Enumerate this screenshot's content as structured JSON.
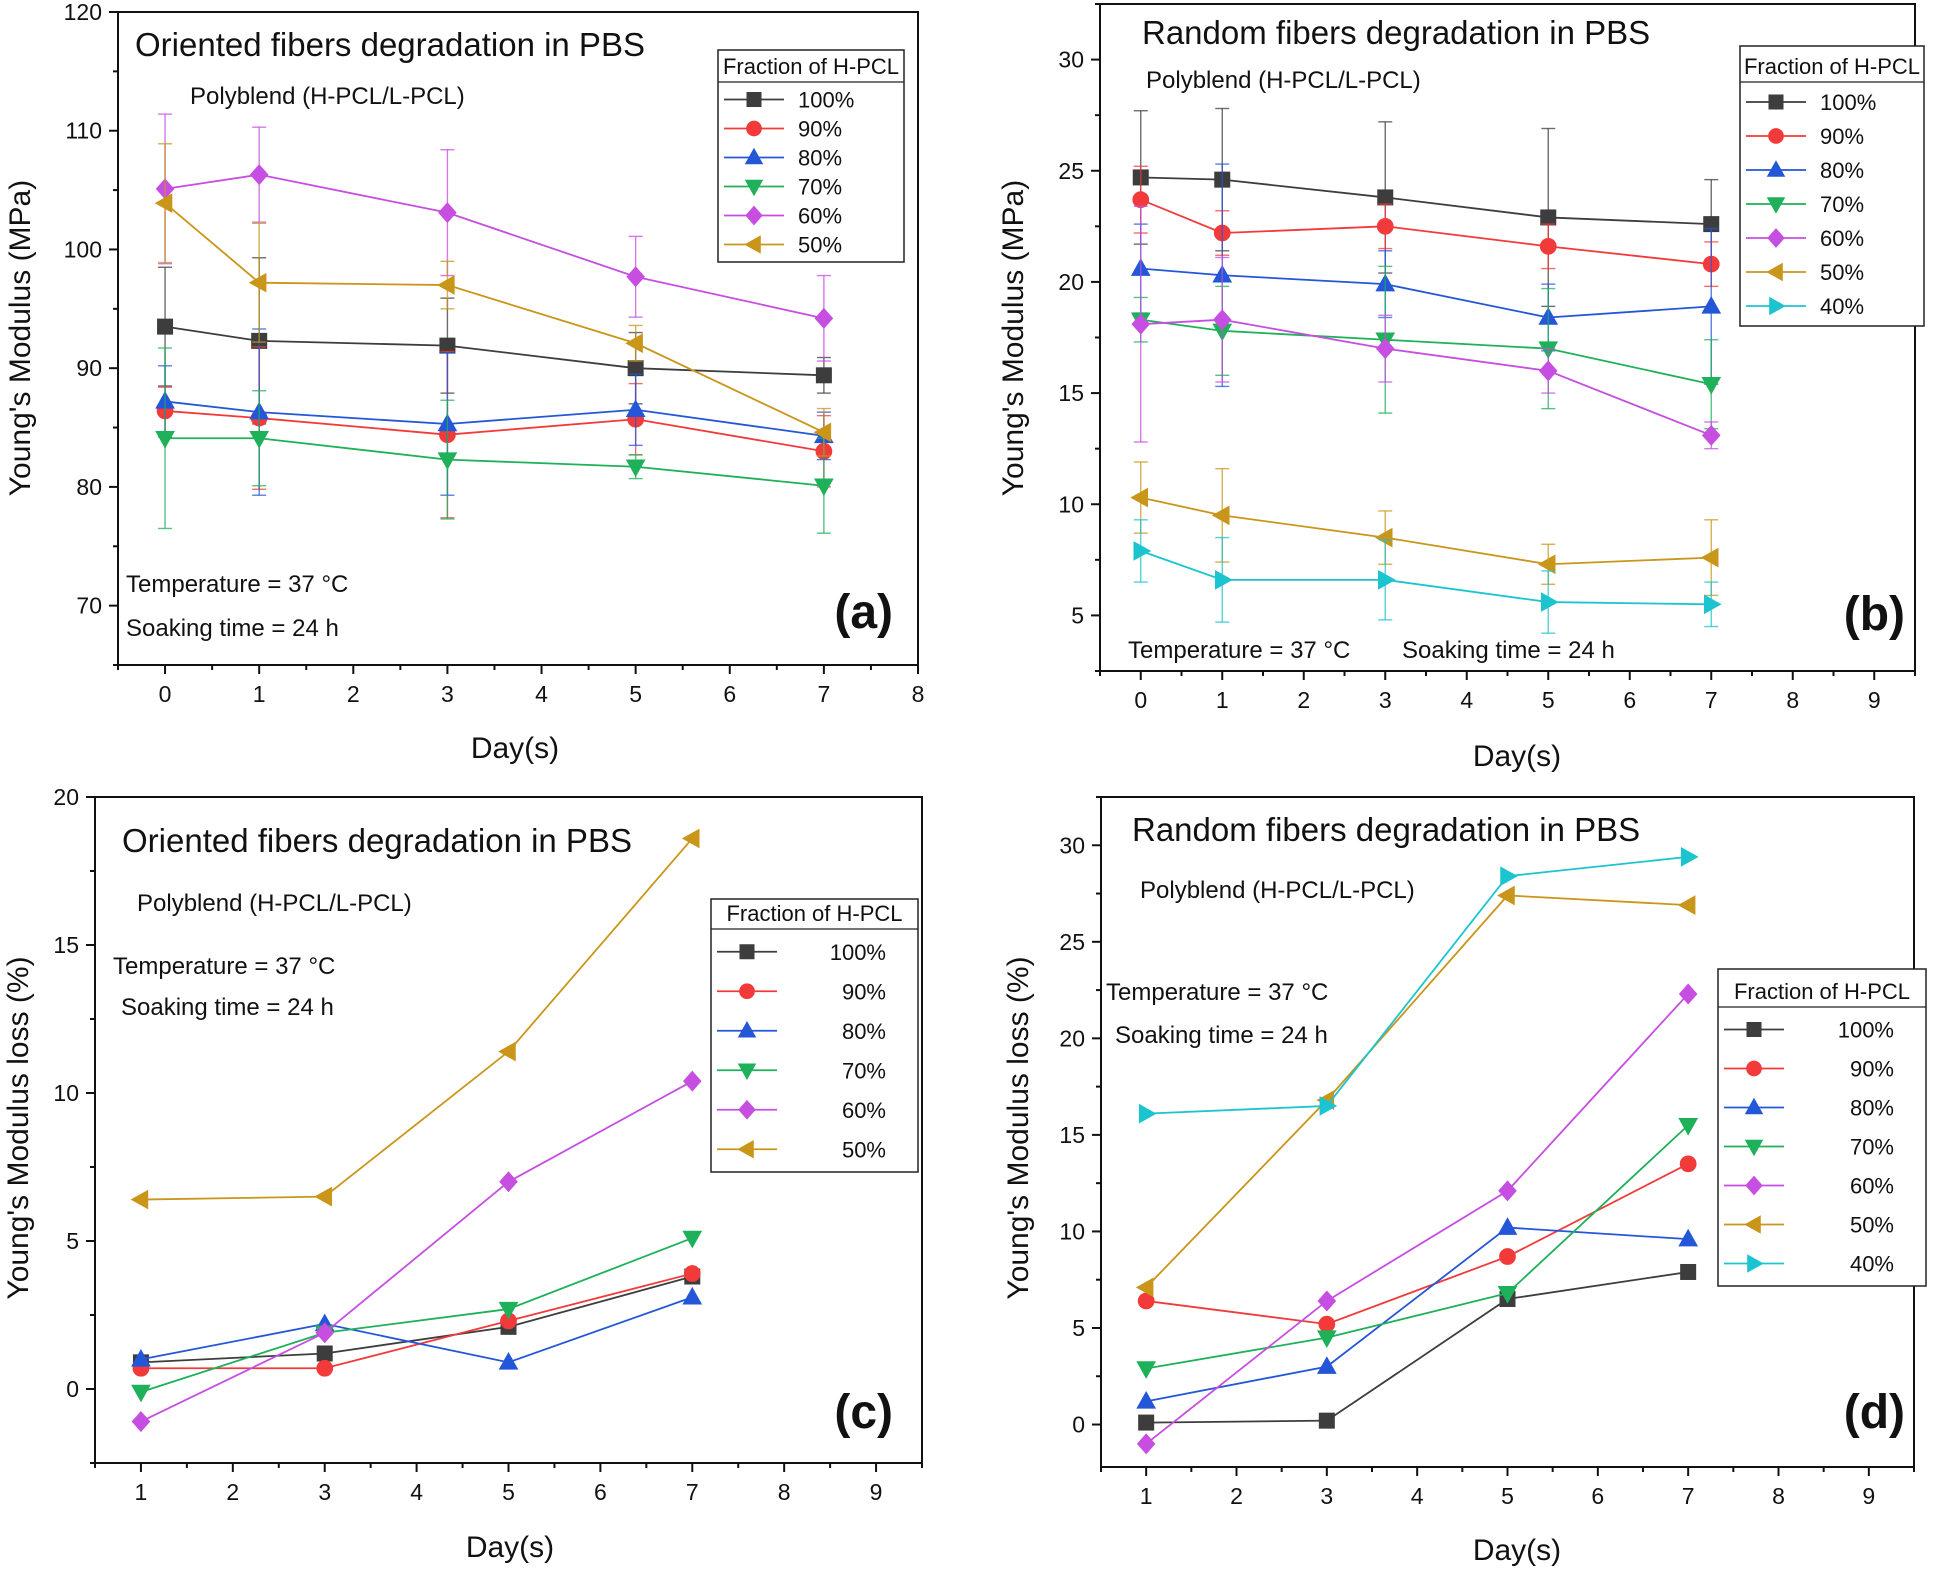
{
  "figure": {
    "type": "multi-panel line chart with error bars"
  },
  "colors": {
    "100%": "#3d3d3d",
    "90%": "#f23a3a",
    "80%": "#2456d8",
    "70%": "#1fb05a",
    "60%": "#c64ee0",
    "50%": "#c9961a",
    "40%": "#1cc4cf"
  },
  "chart_data": [
    {
      "id": "a",
      "type": "line",
      "title": "Oriented fibers degradation in PBS",
      "subtitle": "Polyblend  (H-PCL/L-PCL)",
      "conditions": [
        "Temperature  = 37 °C",
        "Soaking time  = 24 h"
      ],
      "panel_label": "(a)",
      "xlabel": "Day(s)",
      "ylabel": "Young's Modulus (MPa)",
      "xlim": [
        -0.5,
        8
      ],
      "ylim": [
        65,
        120
      ],
      "xticks": [
        0,
        1,
        2,
        3,
        4,
        5,
        6,
        7,
        8
      ],
      "yticks": [
        70,
        80,
        90,
        100,
        110,
        120
      ],
      "legend_title": "Fraction of H-PCL",
      "legend_position": "top-right",
      "x": [
        0,
        1,
        3,
        5,
        7
      ],
      "series": [
        {
          "name": "100%",
          "marker": "square",
          "values": [
            93.5,
            92.3,
            91.9,
            90.0,
            89.4
          ],
          "err": [
            5,
            7,
            4,
            3,
            1.5
          ]
        },
        {
          "name": "90%",
          "marker": "circle",
          "values": [
            86.4,
            85.8,
            84.4,
            85.7,
            83.0
          ],
          "err": [
            2,
            6,
            7,
            3,
            3
          ]
        },
        {
          "name": "80%",
          "marker": "triangle-up",
          "values": [
            87.2,
            86.3,
            85.3,
            86.5,
            84.3
          ],
          "err": [
            3,
            7,
            6,
            3,
            2
          ]
        },
        {
          "name": "70%",
          "marker": "triangle-down",
          "values": [
            84.1,
            84.1,
            82.3,
            81.7,
            80.1
          ],
          "err": [
            7.6,
            4,
            5,
            1,
            4
          ]
        },
        {
          "name": "60%",
          "marker": "diamond",
          "values": [
            105.1,
            106.3,
            103.1,
            97.7,
            94.2
          ],
          "err": [
            6.3,
            4,
            5.3,
            3.4,
            3.6
          ]
        },
        {
          "name": "50%",
          "marker": "triangle-left",
          "values": [
            103.9,
            97.2,
            97.0,
            92.1,
            84.6
          ],
          "err": [
            5,
            5,
            2,
            1.5,
            2
          ]
        }
      ]
    },
    {
      "id": "b",
      "type": "line",
      "title": "Random fibers degradation in PBS",
      "subtitle": "Polyblend  (H-PCL/L-PCL)",
      "conditions": [
        "Temperature  = 37 °C",
        "Soaking time  = 24 h"
      ],
      "panel_label": "(b)",
      "xlabel": "Day(s)",
      "ylabel": "Young's Modulus (MPa)",
      "xlim": [
        -0.5,
        9.5
      ],
      "ylim": [
        2.5,
        32.5
      ],
      "xticks": [
        0,
        1,
        2,
        3,
        4,
        5,
        6,
        7,
        8,
        9
      ],
      "yticks": [
        5,
        10,
        15,
        20,
        25,
        30
      ],
      "legend_title": "Fraction of H-PCL",
      "legend_position": "top-right",
      "x": [
        0,
        1,
        3,
        5,
        7
      ],
      "series": [
        {
          "name": "100%",
          "marker": "square",
          "values": [
            24.7,
            24.6,
            23.8,
            22.9,
            22.6
          ],
          "err": [
            3,
            3.2,
            3.4,
            4,
            2
          ]
        },
        {
          "name": "90%",
          "marker": "circle",
          "values": [
            23.7,
            22.2,
            22.5,
            21.6,
            20.8
          ],
          "err": [
            1.5,
            1,
            1,
            1,
            1
          ]
        },
        {
          "name": "80%",
          "marker": "triangle-up",
          "values": [
            20.6,
            20.3,
            19.9,
            18.4,
            18.9
          ],
          "err": [
            2,
            5,
            1.5,
            1.5,
            3.5
          ]
        },
        {
          "name": "70%",
          "marker": "triangle-down",
          "values": [
            18.3,
            17.8,
            17.4,
            17.0,
            15.4
          ],
          "err": [
            1,
            2,
            3.3,
            2.7,
            2
          ]
        },
        {
          "name": "60%",
          "marker": "diamond",
          "values": [
            18.1,
            18.3,
            17.0,
            16.0,
            13.1
          ],
          "err": [
            5.3,
            2.8,
            1.5,
            1,
            0.6
          ]
        },
        {
          "name": "50%",
          "marker": "triangle-left",
          "values": [
            10.3,
            9.5,
            8.5,
            7.3,
            7.6
          ],
          "err": [
            1.6,
            2.1,
            1.2,
            0.9,
            1.7
          ]
        },
        {
          "name": "40%",
          "marker": "triangle-right",
          "values": [
            7.9,
            6.6,
            6.6,
            5.6,
            5.5
          ],
          "err": [
            1.4,
            1.9,
            1.8,
            1.4,
            1
          ]
        }
      ]
    },
    {
      "id": "c",
      "type": "line",
      "title": "Oriented fibers degradation in PBS",
      "subtitle": "Polyblend  (H-PCL/L-PCL)",
      "conditions": [
        "Temperature  = 37 °C",
        "Soaking time  = 24 h"
      ],
      "panel_label": "(c)",
      "xlabel": "Day(s)",
      "ylabel": "Young's Modulus loss (%)",
      "xlim": [
        0.5,
        9.5
      ],
      "ylim": [
        -2.5,
        20
      ],
      "xticks": [
        1,
        2,
        3,
        4,
        5,
        6,
        7,
        8,
        9
      ],
      "yticks": [
        0,
        5,
        10,
        15,
        20
      ],
      "legend_title": "Fraction of H-PCL",
      "legend_position": "right",
      "x": [
        1,
        3,
        5,
        7
      ],
      "series": [
        {
          "name": "100%",
          "marker": "square",
          "values": [
            0.9,
            1.2,
            2.1,
            3.8
          ]
        },
        {
          "name": "90%",
          "marker": "circle",
          "values": [
            0.7,
            0.7,
            2.3,
            3.9
          ]
        },
        {
          "name": "80%",
          "marker": "triangle-up",
          "values": [
            1.0,
            2.2,
            0.9,
            3.1
          ]
        },
        {
          "name": "70%",
          "marker": "triangle-down",
          "values": [
            -0.1,
            1.9,
            2.7,
            5.1
          ]
        },
        {
          "name": "60%",
          "marker": "diamond",
          "values": [
            -1.1,
            1.9,
            7.0,
            10.4
          ]
        },
        {
          "name": "50%",
          "marker": "triangle-left",
          "values": [
            6.4,
            6.5,
            11.4,
            18.6
          ]
        }
      ]
    },
    {
      "id": "d",
      "type": "line",
      "title": "Random fibers degradation in PBS",
      "subtitle": "Polyblend  (H-PCL/L-PCL)",
      "conditions": [
        "Temperature  = 37 °C",
        "Soaking time  = 24 h"
      ],
      "panel_label": "(d)",
      "xlabel": "Day(s)",
      "ylabel": "Young's Modulus loss (%)",
      "xlim": [
        0.5,
        9.5
      ],
      "ylim": [
        -2.2,
        32.5
      ],
      "xticks": [
        1,
        2,
        3,
        4,
        5,
        6,
        7,
        8,
        9
      ],
      "yticks": [
        0,
        5,
        10,
        15,
        20,
        25,
        30
      ],
      "legend_title": "Fraction of H-PCL",
      "legend_position": "right",
      "x": [
        1,
        3,
        5,
        7
      ],
      "series": [
        {
          "name": "100%",
          "marker": "square",
          "values": [
            0.1,
            0.2,
            6.5,
            7.9
          ]
        },
        {
          "name": "90%",
          "marker": "circle",
          "values": [
            6.4,
            5.2,
            8.7,
            13.5
          ]
        },
        {
          "name": "80%",
          "marker": "triangle-up",
          "values": [
            1.2,
            3.0,
            10.2,
            9.6
          ]
        },
        {
          "name": "70%",
          "marker": "triangle-down",
          "values": [
            2.9,
            4.5,
            6.8,
            15.5
          ]
        },
        {
          "name": "60%",
          "marker": "diamond",
          "values": [
            -1.0,
            6.4,
            12.1,
            22.3
          ]
        },
        {
          "name": "50%",
          "marker": "triangle-left",
          "values": [
            7.1,
            16.8,
            27.4,
            26.9
          ]
        },
        {
          "name": "40%",
          "marker": "triangle-right",
          "values": [
            16.1,
            16.5,
            28.4,
            29.4
          ]
        }
      ]
    }
  ]
}
